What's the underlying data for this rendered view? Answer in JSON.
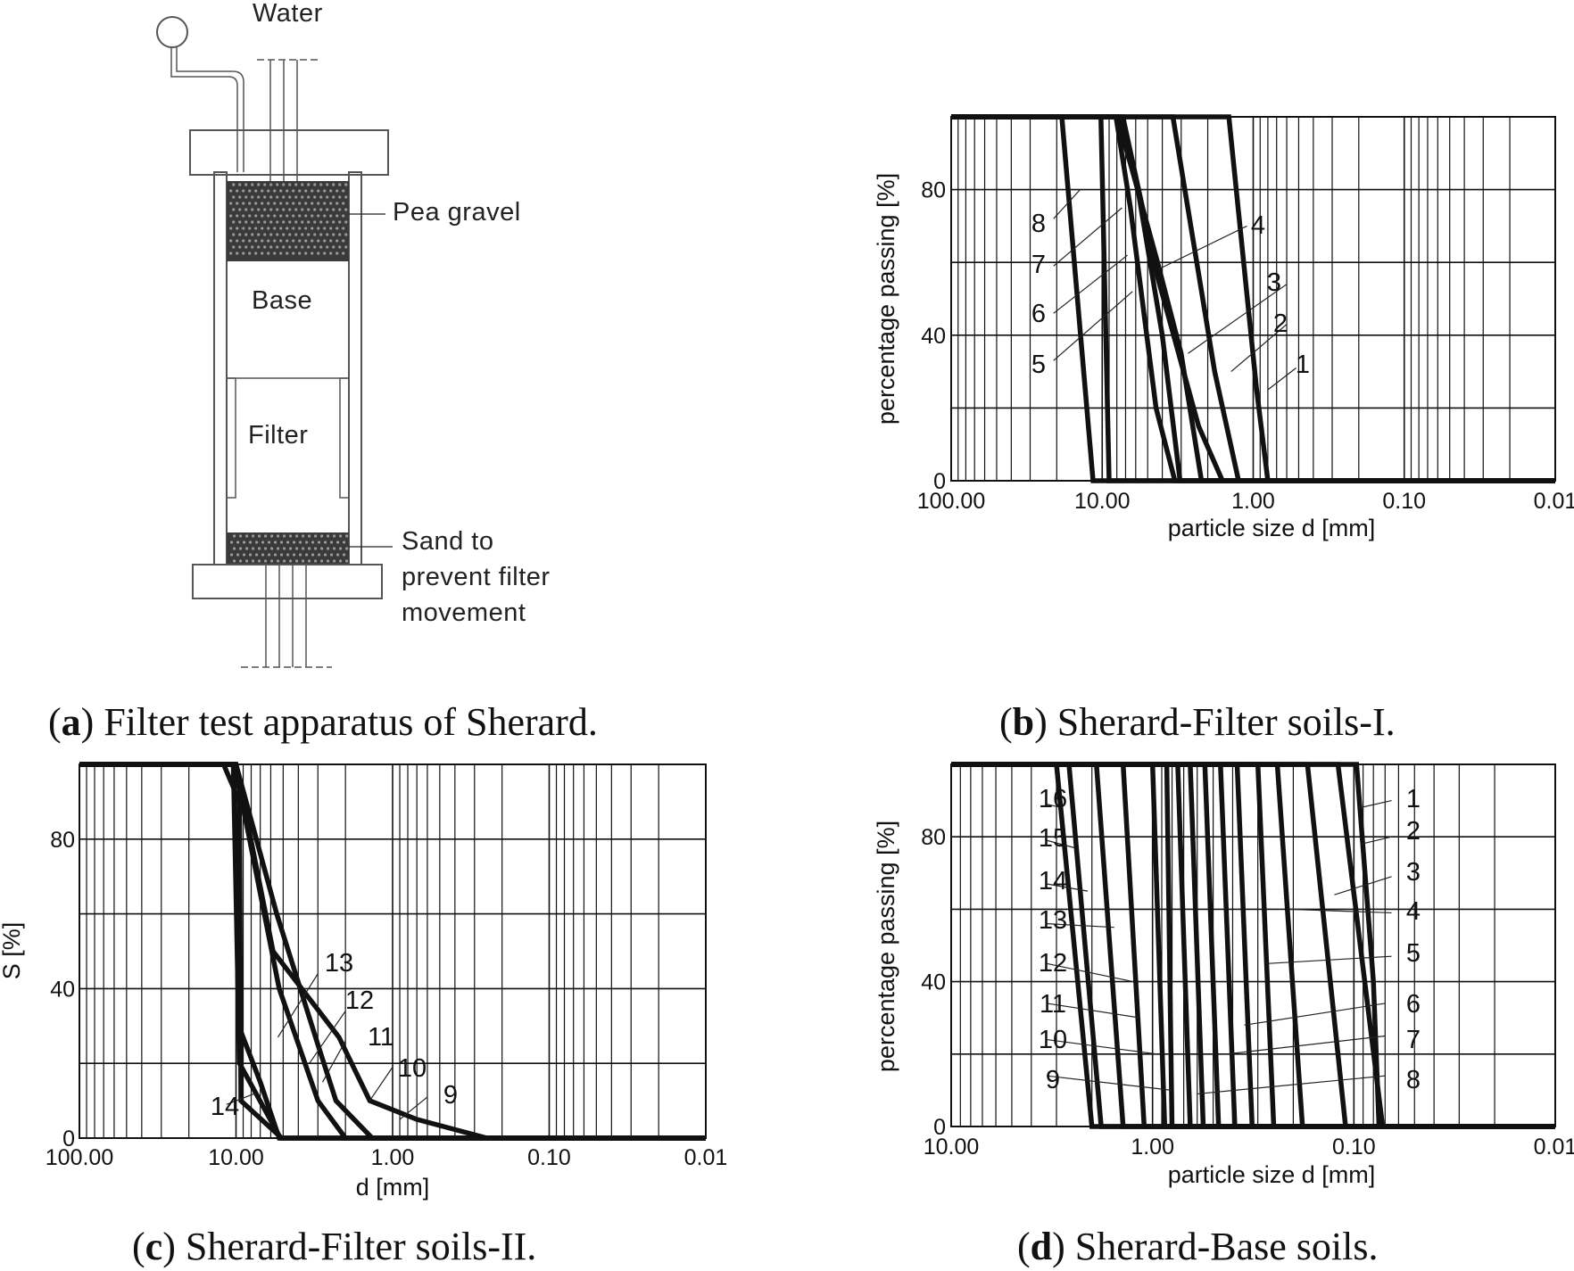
{
  "apparatus": {
    "labels": {
      "water": "Water",
      "pea_gravel": "Pea gravel",
      "base": "Base",
      "filter": "Filter",
      "sand_line1": "Sand to",
      "sand_line2": "prevent filter",
      "sand_line3": "movement"
    },
    "caption": {
      "letter": "a",
      "text": "Filter test apparatus of Sherard."
    }
  },
  "chart_data": [
    {
      "id": "b",
      "type": "line",
      "caption": {
        "letter": "b",
        "text": "Sherard-Filter soils-I."
      },
      "xlabel": "particle size d [mm]",
      "ylabel": "percentage passing [%]",
      "x_scale": "log",
      "xlim": [
        100,
        0.01
      ],
      "ylim": [
        0,
        100
      ],
      "x_tick_labels": [
        "100.00",
        "10.00",
        "1.00",
        "0.10",
        "0.01"
      ],
      "y_tick_labels": [
        "0",
        "40",
        "80"
      ],
      "y_ticks": [
        0,
        40,
        80
      ],
      "series": [
        {
          "name": "1",
          "points": [
            [
              100,
              100
            ],
            [
              1.45,
              100
            ],
            [
              0.95,
              25
            ],
            [
              0.8,
              0
            ],
            [
              0.01,
              0
            ]
          ]
        },
        {
          "name": "2",
          "points": [
            [
              100,
              100
            ],
            [
              3.4,
              100
            ],
            [
              1.8,
              30
            ],
            [
              1.25,
              0
            ],
            [
              0.01,
              0
            ]
          ]
        },
        {
          "name": "3",
          "points": [
            [
              100,
              100
            ],
            [
              7.3,
              100
            ],
            [
              4.3,
              56
            ],
            [
              2.3,
              15
            ],
            [
              1.6,
              0
            ],
            [
              0.01,
              0
            ]
          ]
        },
        {
          "name": "4",
          "points": [
            [
              100,
              100
            ],
            [
              7.9,
              100
            ],
            [
              4.3,
              60
            ],
            [
              3.0,
              35
            ],
            [
              2.2,
              0
            ],
            [
              0.01,
              0
            ]
          ]
        },
        {
          "name": "5",
          "points": [
            [
              100,
              100
            ],
            [
              8.0,
              100
            ],
            [
              5.8,
              80
            ],
            [
              4.0,
              40
            ],
            [
              3.05,
              0
            ],
            [
              0.01,
              0
            ]
          ]
        },
        {
          "name": "6",
          "points": [
            [
              100,
              100
            ],
            [
              8.1,
              100
            ],
            [
              6.5,
              75
            ],
            [
              4.4,
              20
            ],
            [
              3.3,
              0
            ],
            [
              0.01,
              0
            ]
          ]
        },
        {
          "name": "7",
          "points": [
            [
              100,
              100
            ],
            [
              10.2,
              100
            ],
            [
              9.0,
              0
            ],
            [
              0.01,
              0
            ]
          ]
        },
        {
          "name": "8",
          "points": [
            [
              100,
              100
            ],
            [
              18.5,
              100
            ],
            [
              11.5,
              0
            ],
            [
              0.01,
              0
            ]
          ]
        }
      ],
      "leaders": [
        {
          "label": "1",
          "from": [
            0.52,
            31
          ],
          "to": [
            0.8,
            25
          ]
        },
        {
          "label": "2",
          "from": [
            0.6,
            43
          ],
          "to": [
            1.4,
            30
          ]
        },
        {
          "label": "3",
          "from": [
            0.6,
            54
          ],
          "to": [
            2.7,
            35
          ]
        },
        {
          "label": "4",
          "from": [
            1.1,
            70
          ],
          "to": [
            4.3,
            58
          ]
        },
        {
          "label": "5",
          "from": [
            21,
            33
          ],
          "to": [
            6.3,
            52
          ]
        },
        {
          "label": "6",
          "from": [
            21,
            46
          ],
          "to": [
            6.8,
            62
          ]
        },
        {
          "label": "7",
          "from": [
            21,
            59
          ],
          "to": [
            7.4,
            75
          ]
        },
        {
          "label": "8",
          "from": [
            21,
            72
          ],
          "to": [
            14,
            80
          ]
        }
      ]
    },
    {
      "id": "c",
      "type": "line",
      "caption": {
        "letter": "c",
        "text": "Sherard-Filter soils-II."
      },
      "xlabel": "d [mm]",
      "ylabel": "S [%]",
      "x_scale": "log",
      "xlim": [
        100,
        0.01
      ],
      "ylim": [
        0,
        100
      ],
      "x_tick_labels": [
        "100.00",
        "10.00",
        "1.00",
        "0.10",
        "0.01"
      ],
      "y_tick_labels": [
        "0",
        "40",
        "80"
      ],
      "y_ticks": [
        0,
        40,
        80
      ],
      "series": [
        {
          "name": "9",
          "points": [
            [
              100,
              100
            ],
            [
              10,
              100
            ],
            [
              5.8,
              50
            ],
            [
              2.2,
              27
            ],
            [
              1.4,
              10
            ],
            [
              0.7,
              5
            ],
            [
              0.25,
              0
            ],
            [
              0.01,
              0
            ]
          ]
        },
        {
          "name": "10",
          "points": [
            [
              100,
              100
            ],
            [
              10,
              100
            ],
            [
              5.5,
              60
            ],
            [
              3.0,
              25
            ],
            [
              2.3,
              10
            ],
            [
              1.35,
              0
            ],
            [
              0.01,
              0
            ]
          ]
        },
        {
          "name": "11",
          "points": [
            [
              100,
              100
            ],
            [
              10.2,
              100
            ],
            [
              5.3,
              40
            ],
            [
              3.0,
              10
            ],
            [
              2.0,
              0
            ],
            [
              0.01,
              0
            ]
          ]
        },
        {
          "name": "12",
          "points": [
            [
              100,
              100
            ],
            [
              10.3,
              100
            ],
            [
              9.6,
              30
            ],
            [
              7.0,
              15
            ],
            [
              5.3,
              0
            ],
            [
              0.01,
              0
            ]
          ]
        },
        {
          "name": "13",
          "points": [
            [
              100,
              100
            ],
            [
              10.4,
              100
            ],
            [
              9.5,
              20
            ],
            [
              5.2,
              0
            ],
            [
              0.01,
              0
            ]
          ]
        },
        {
          "name": "14",
          "points": [
            [
              100,
              100
            ],
            [
              12,
              100
            ],
            [
              9.5,
              90
            ],
            [
              9.3,
              10
            ],
            [
              5.1,
              0
            ],
            [
              0.01,
              0
            ]
          ]
        }
      ],
      "leaders": [
        {
          "label": "9",
          "from": [
            0.6,
            11
          ],
          "to": [
            0.9,
            5
          ]
        },
        {
          "label": "10",
          "from": [
            1.0,
            19
          ],
          "to": [
            1.4,
            10
          ]
        },
        {
          "label": "11",
          "from": [
            2.0,
            26
          ],
          "to": [
            2.8,
            15
          ]
        },
        {
          "label": "12",
          "from": [
            2.0,
            34
          ],
          "to": [
            3.4,
            20
          ]
        },
        {
          "label": "13",
          "from": [
            3.0,
            44
          ],
          "to": [
            5.4,
            27
          ]
        },
        {
          "label": "14",
          "from": [
            11.5,
            9
          ],
          "to": [
            7.5,
            12
          ]
        }
      ]
    },
    {
      "id": "d",
      "type": "line",
      "caption": {
        "letter": "d",
        "text": "Sherard-Base soils."
      },
      "xlabel": "particle size d [mm]",
      "ylabel": "percentage passing [%]",
      "x_scale": "log",
      "xlim": [
        10,
        0.01
      ],
      "ylim": [
        0,
        100
      ],
      "x_tick_labels": [
        "10.00",
        "1.00",
        "0.10",
        "0.01"
      ],
      "y_tick_labels": [
        "0",
        "40",
        "80"
      ],
      "y_ticks": [
        0,
        40,
        80
      ],
      "series": [
        {
          "name": "1",
          "points": [
            [
              10,
              100
            ],
            [
              0.097,
              100
            ],
            [
              0.08,
              40
            ],
            [
              0.075,
              0
            ],
            [
              0.01,
              0
            ]
          ]
        },
        {
          "name": "2",
          "points": [
            [
              10,
              100
            ],
            [
              0.12,
              100
            ],
            [
              0.072,
              0
            ],
            [
              0.01,
              0
            ]
          ]
        },
        {
          "name": "3",
          "points": [
            [
              10,
              100
            ],
            [
              0.17,
              100
            ],
            [
              0.11,
              0
            ],
            [
              0.01,
              0
            ]
          ]
        },
        {
          "name": "4",
          "points": [
            [
              10,
              100
            ],
            [
              0.24,
              100
            ],
            [
              0.18,
              0
            ],
            [
              0.01,
              0
            ]
          ]
        },
        {
          "name": "5",
          "points": [
            [
              10,
              100
            ],
            [
              0.3,
              100
            ],
            [
              0.25,
              0
            ],
            [
              0.01,
              0
            ]
          ]
        },
        {
          "name": "6",
          "points": [
            [
              10,
              100
            ],
            [
              0.38,
              100
            ],
            [
              0.32,
              0
            ],
            [
              0.01,
              0
            ]
          ]
        },
        {
          "name": "7",
          "points": [
            [
              10,
              100
            ],
            [
              0.46,
              100
            ],
            [
              0.39,
              0
            ],
            [
              0.01,
              0
            ]
          ]
        },
        {
          "name": "8",
          "points": [
            [
              10,
              100
            ],
            [
              0.55,
              100
            ],
            [
              0.47,
              0
            ],
            [
              0.01,
              0
            ]
          ]
        },
        {
          "name": "9",
          "points": [
            [
              10,
              100
            ],
            [
              0.65,
              100
            ],
            [
              0.56,
              0
            ],
            [
              0.01,
              0
            ]
          ]
        },
        {
          "name": "10",
          "points": [
            [
              10,
              100
            ],
            [
              0.75,
              100
            ],
            [
              0.65,
              0
            ],
            [
              0.01,
              0
            ]
          ]
        },
        {
          "name": "11",
          "points": [
            [
              10,
              100
            ],
            [
              0.85,
              100
            ],
            [
              0.8,
              0
            ],
            [
              0.01,
              0
            ]
          ]
        },
        {
          "name": "12",
          "points": [
            [
              10,
              100
            ],
            [
              1.0,
              100
            ],
            [
              0.87,
              0
            ],
            [
              0.01,
              0
            ]
          ]
        },
        {
          "name": "13",
          "points": [
            [
              10,
              100
            ],
            [
              1.4,
              100
            ],
            [
              1.1,
              0
            ],
            [
              0.01,
              0
            ]
          ]
        },
        {
          "name": "14",
          "points": [
            [
              10,
              100
            ],
            [
              1.9,
              100
            ],
            [
              1.4,
              0
            ],
            [
              0.01,
              0
            ]
          ]
        },
        {
          "name": "15",
          "points": [
            [
              10,
              100
            ],
            [
              2.6,
              100
            ],
            [
              1.8,
              0
            ],
            [
              0.01,
              0
            ]
          ]
        },
        {
          "name": "16",
          "points": [
            [
              10,
              100
            ],
            [
              3.0,
              100
            ],
            [
              2.0,
              0
            ],
            [
              0.01,
              0
            ]
          ]
        }
      ],
      "leaders": [
        {
          "label": "1",
          "from": [
            0.065,
            90
          ],
          "to": [
            0.094,
            88
          ]
        },
        {
          "label": "2",
          "from": [
            0.065,
            80
          ],
          "to": [
            0.092,
            78
          ]
        },
        {
          "label": "3",
          "from": [
            0.065,
            69
          ],
          "to": [
            0.125,
            64
          ]
        },
        {
          "label": "4",
          "from": [
            0.065,
            59
          ],
          "to": [
            0.21,
            60
          ]
        },
        {
          "label": "5",
          "from": [
            0.065,
            47
          ],
          "to": [
            0.27,
            45
          ]
        },
        {
          "label": "6",
          "from": [
            0.07,
            34
          ],
          "to": [
            0.35,
            28
          ]
        },
        {
          "label": "7",
          "from": [
            0.07,
            25
          ],
          "to": [
            0.43,
            20
          ]
        },
        {
          "label": "8",
          "from": [
            0.07,
            14
          ],
          "to": [
            0.6,
            9
          ]
        },
        {
          "label": "9",
          "from": [
            3.35,
            14
          ],
          "to": [
            0.8,
            10
          ]
        },
        {
          "label": "10",
          "from": [
            3.35,
            24
          ],
          "to": [
            0.95,
            20
          ]
        },
        {
          "label": "11",
          "from": [
            3.35,
            34
          ],
          "to": [
            1.15,
            30
          ]
        },
        {
          "label": "12",
          "from": [
            3.35,
            45
          ],
          "to": [
            1.25,
            40
          ]
        },
        {
          "label": "13",
          "from": [
            3.35,
            56
          ],
          "to": [
            1.55,
            55
          ]
        },
        {
          "label": "14",
          "from": [
            3.35,
            67
          ],
          "to": [
            2.1,
            65
          ]
        },
        {
          "label": "15",
          "from": [
            3.35,
            79
          ],
          "to": [
            2.45,
            77
          ]
        },
        {
          "label": "16",
          "from": [
            3.35,
            89
          ],
          "to": [
            2.8,
            88
          ]
        }
      ]
    }
  ]
}
